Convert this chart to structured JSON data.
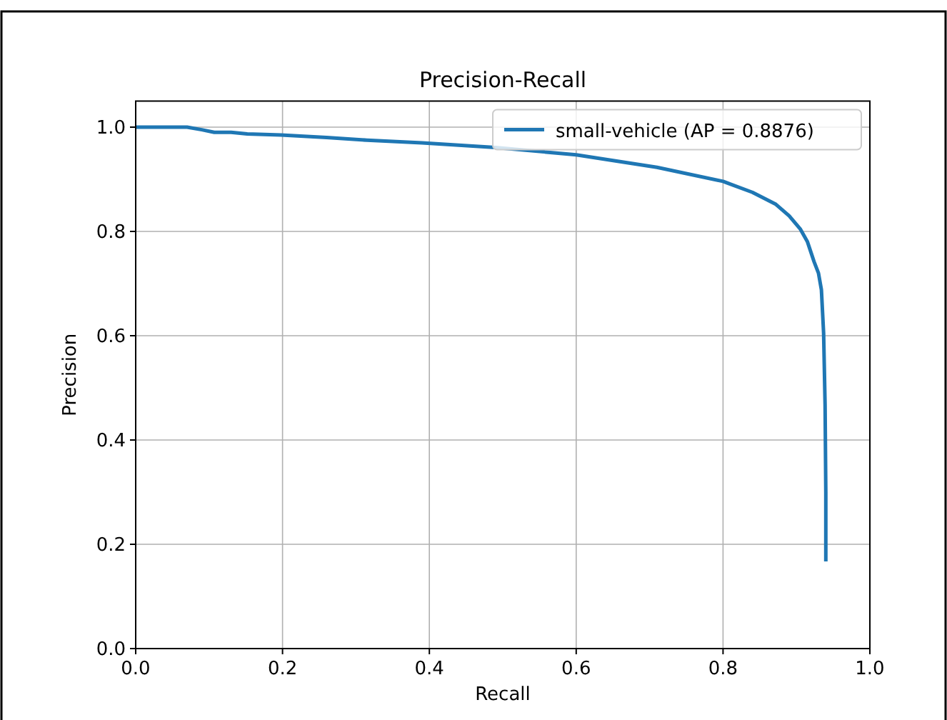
{
  "chart_data": {
    "type": "line",
    "title": "Precision-Recall",
    "xlabel": "Recall",
    "ylabel": "Precision",
    "xlim": [
      0,
      1
    ],
    "ylim": [
      0,
      1.05
    ],
    "xticks": [
      {
        "value": 0,
        "label": "0.0"
      },
      0.2,
      0.4,
      0.6,
      0.8,
      {
        "value": 1,
        "label": "1.0"
      }
    ],
    "yticks": [
      {
        "value": 0,
        "label": "0.0"
      },
      0.2,
      0.4,
      0.6,
      0.8,
      {
        "value": 1,
        "label": "1.0"
      }
    ],
    "grid": true,
    "legend": "top right",
    "marker": "none",
    "line_style": "solid",
    "series": [
      {
        "name": "small-vehicle (AP = 0.8876)",
        "color": "#1f77b4",
        "x": [
          0,
          0.04,
          0.07,
          0.09,
          0.107,
          0.13,
          0.152,
          0.198,
          0.26,
          0.315,
          0.39,
          0.49,
          0.6,
          0.71,
          0.8,
          0.84,
          0.872,
          0.89,
          0.905,
          0.915,
          0.924,
          0.93,
          0.934,
          0.937,
          0.939,
          0.94,
          0.94
        ],
        "values": [
          1,
          1,
          1,
          0.995,
          0.99,
          0.99,
          0.987,
          0.985,
          0.98,
          0.975,
          0.97,
          0.961,
          0.947,
          0.923,
          0.896,
          0.875,
          0.852,
          0.83,
          0.805,
          0.78,
          0.742,
          0.72,
          0.688,
          0.605,
          0.468,
          0.3,
          0.167
        ]
      }
    ]
  }
}
